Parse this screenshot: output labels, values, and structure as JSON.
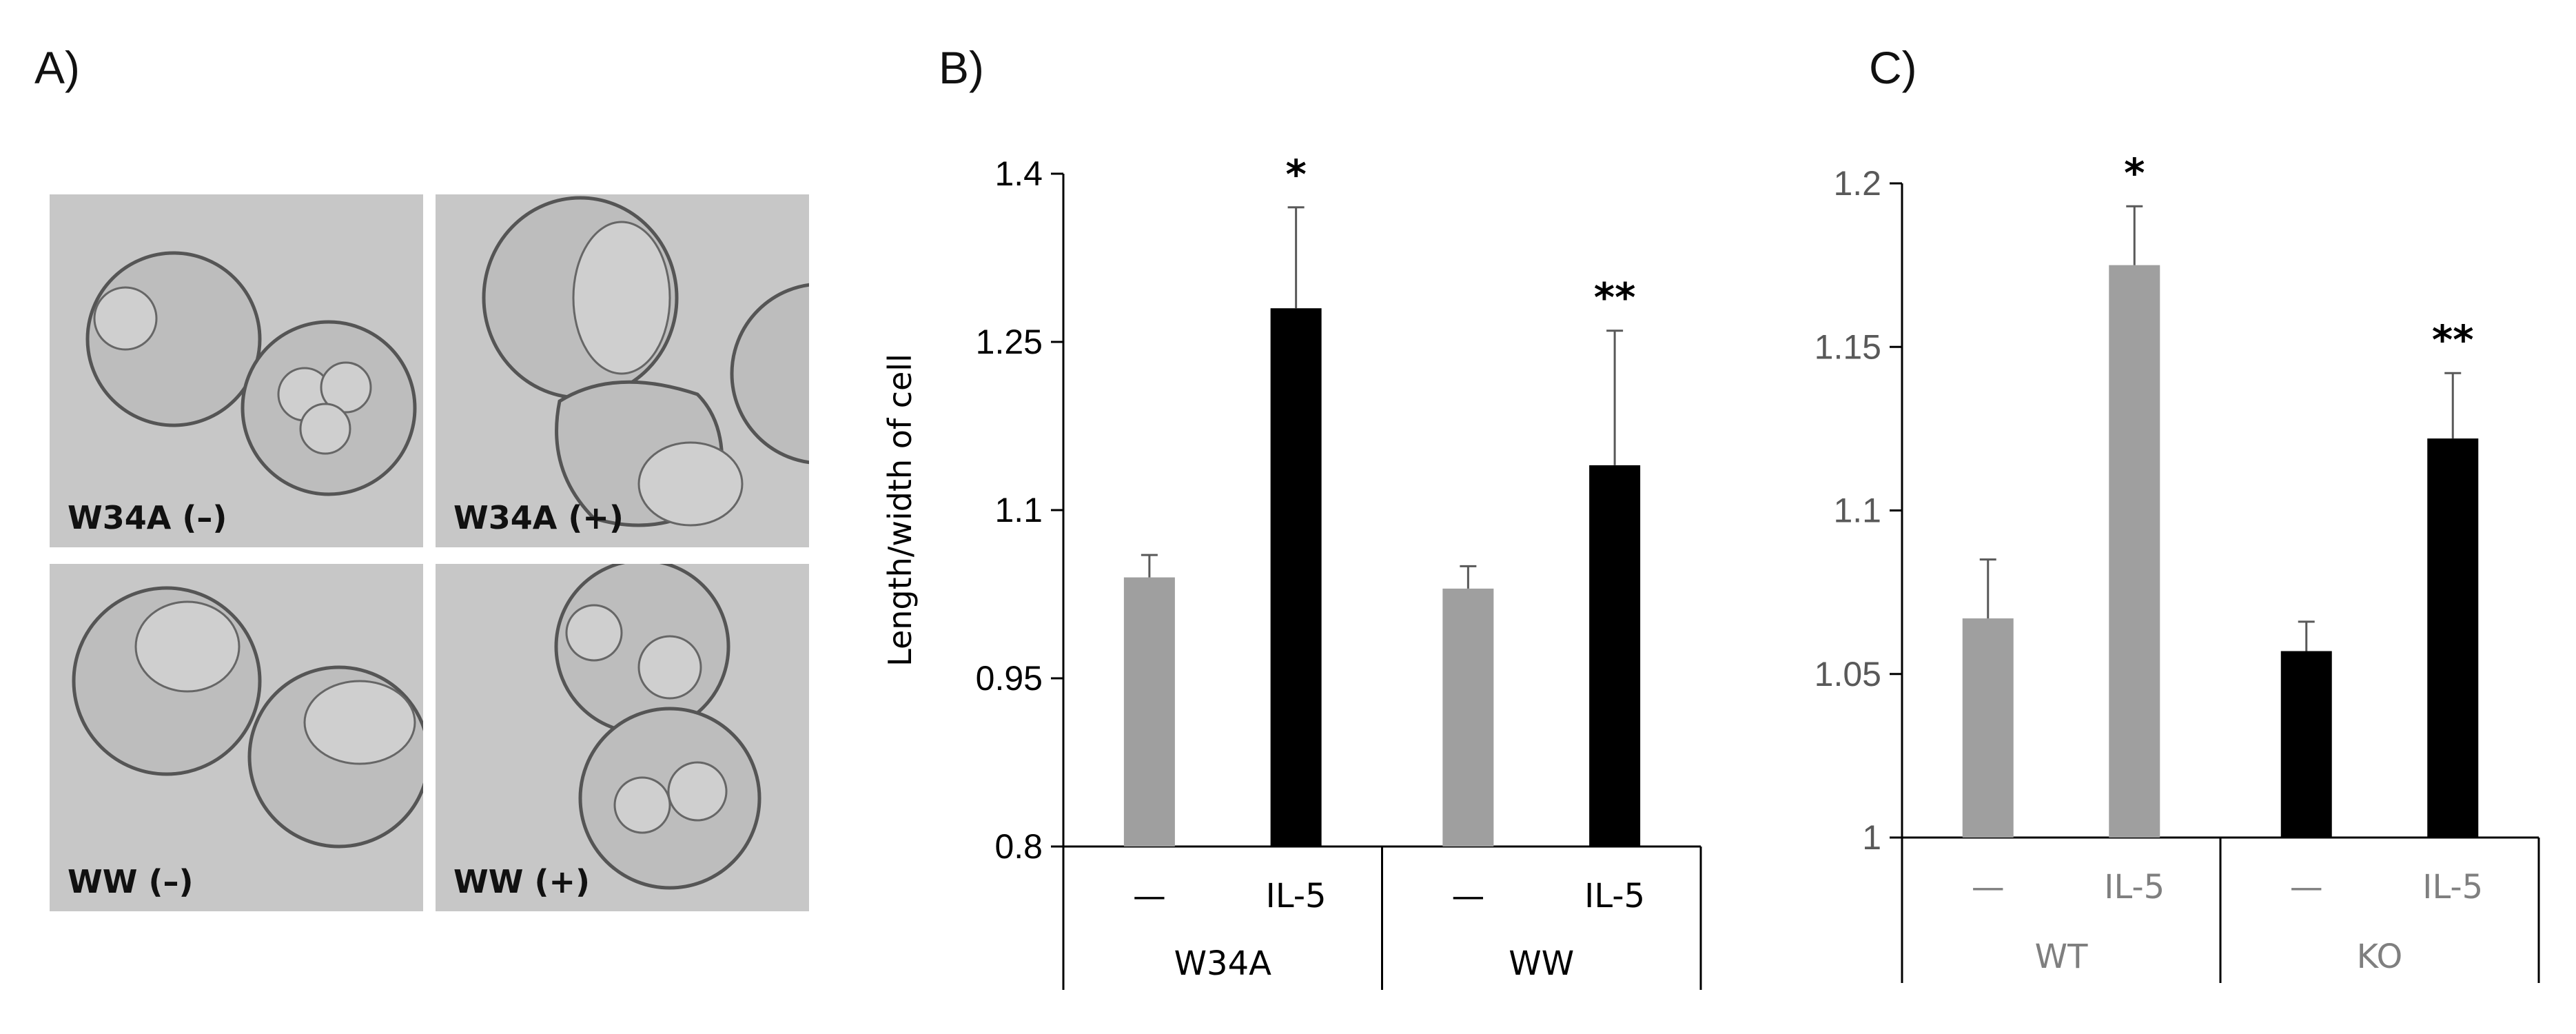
{
  "panels": {
    "a": {
      "label": "A)"
    },
    "b": {
      "label": "B)"
    },
    "c": {
      "label": "C)"
    }
  },
  "micrographs": [
    {
      "label": "W34A (–)"
    },
    {
      "label": "W34A (+)"
    },
    {
      "label": "WW (–)"
    },
    {
      "label": "WW (+)"
    }
  ],
  "colors": {
    "gray": "#9f9f9f",
    "black": "#000000",
    "axis": "#000000",
    "cgrey_text": "#7f7f7f"
  },
  "chart_data": [
    {
      "type": "bar",
      "panel": "B)",
      "ylabel": "Length/width of cell",
      "ylim": [
        0.8,
        1.4
      ],
      "yticks": [
        "0.8",
        "0.95",
        "1.1",
        "1.25",
        "1.4"
      ],
      "yticks_values": [
        0.8,
        0.95,
        1.1,
        1.25,
        1.4
      ],
      "groups": [
        "W34A",
        "WW"
      ],
      "categories": [
        "—",
        "IL-5",
        "—",
        "IL-5"
      ],
      "values": [
        1.04,
        1.28,
        1.03,
        1.14
      ],
      "errors": [
        0.02,
        0.09,
        0.02,
        0.12
      ],
      "bar_colors": [
        "#9f9f9f",
        "#000000",
        "#9f9f9f",
        "#000000"
      ],
      "significance": [
        "",
        "*",
        "",
        "**"
      ]
    },
    {
      "type": "bar",
      "panel": "C)",
      "ylabel": "",
      "ylim": [
        1.0,
        1.2
      ],
      "yticks": [
        "1",
        "1.05",
        "1.1",
        "1.15",
        "1.2"
      ],
      "yticks_values": [
        1.0,
        1.05,
        1.1,
        1.15,
        1.2
      ],
      "groups": [
        "WT",
        "KO"
      ],
      "categories": [
        "—",
        "IL-5",
        "—",
        "IL-5"
      ],
      "values": [
        1.067,
        1.175,
        1.057,
        1.122
      ],
      "errors": [
        0.018,
        0.018,
        0.009,
        0.02
      ],
      "bar_colors": [
        "#9f9f9f",
        "#9f9f9f",
        "#000000",
        "#000000"
      ],
      "significance": [
        "",
        "*",
        "",
        "**"
      ]
    }
  ]
}
